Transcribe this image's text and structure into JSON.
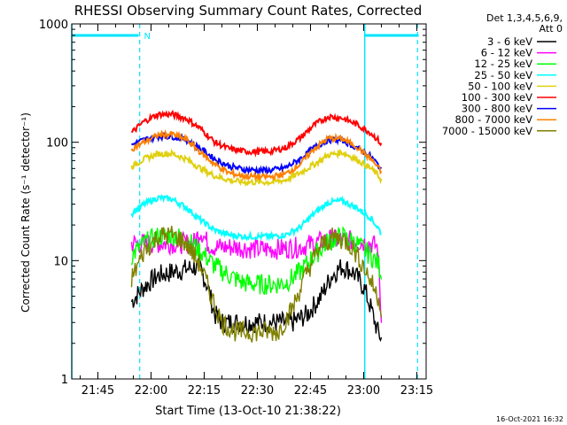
{
  "chart_data": {
    "type": "line",
    "title": "RHESSI Observing Summary Count Rates, Corrected",
    "xlabel": "Start Time (13-Oct-10 21:38:22)",
    "ylabel": "Corrected Count Rate (s⁻¹ detector⁻¹)",
    "yscale": "log",
    "ylim": [
      1,
      1000
    ],
    "xlim_minutes": [
      -2.37,
      97.63
    ],
    "x_unit": "minutes after 21:40",
    "y_ticks": [
      {
        "value": 1,
        "label": "1"
      },
      {
        "value": 10,
        "label": "10"
      },
      {
        "value": 100,
        "label": "100"
      },
      {
        "value": 1000,
        "label": "1000"
      }
    ],
    "x_ticks": [
      {
        "value": 5,
        "label": "21:45"
      },
      {
        "value": 20,
        "label": "22:00"
      },
      {
        "value": 35,
        "label": "22:15"
      },
      {
        "value": 50,
        "label": "22:30"
      },
      {
        "value": 65,
        "label": "22:45"
      },
      {
        "value": 80,
        "label": "23:00"
      },
      {
        "value": 95,
        "label": "23:15"
      }
    ],
    "legend_header": [
      "Det 1,3,4,5,6,9,",
      "Att 0"
    ],
    "legend_position": "right",
    "data_start": 14.5,
    "data_end": 85,
    "series": [
      {
        "name": "3 - 6 keV",
        "color": "#000000",
        "x": [
          14.5,
          18,
          22,
          26,
          30,
          32,
          34,
          36,
          38,
          40,
          44,
          48,
          52,
          56,
          60,
          64,
          68,
          71,
          74,
          77,
          80,
          82,
          84,
          85
        ],
        "values": [
          4.5,
          6,
          7.5,
          8,
          8.5,
          8.8,
          8.5,
          6,
          3.5,
          3,
          3,
          3,
          3,
          3,
          3,
          3.5,
          5,
          7.5,
          9,
          8,
          6,
          4,
          2.5,
          2.2
        ]
      },
      {
        "name": "6 - 12 keV",
        "color": "#ff00ff",
        "x": [
          14.5,
          20,
          26,
          30,
          32,
          34,
          36,
          38,
          44,
          50,
          56,
          62,
          66,
          70,
          74,
          78,
          82,
          84,
          85
        ],
        "values": [
          14,
          14,
          14,
          14,
          14,
          18,
          14,
          13,
          13,
          12.5,
          12.5,
          13,
          14,
          15,
          15,
          14.5,
          14,
          13,
          3
        ]
      },
      {
        "name": "12 - 25 keV",
        "color": "#00ff00",
        "x": [
          14.5,
          18,
          22,
          26,
          30,
          34,
          38,
          42,
          46,
          50,
          54,
          58,
          62,
          66,
          70,
          74,
          78,
          82,
          84,
          85
        ],
        "values": [
          11,
          14,
          16,
          16.5,
          15,
          12,
          9,
          7.5,
          6.5,
          6.3,
          6.3,
          6.5,
          8,
          11,
          14.5,
          16,
          14,
          11,
          9.5,
          8
        ]
      },
      {
        "name": "25 - 50 keV",
        "color": "#00ffff",
        "x": [
          14.5,
          18,
          22,
          26,
          30,
          34,
          38,
          42,
          46,
          50,
          54,
          58,
          62,
          66,
          70,
          74,
          78,
          82,
          84,
          85
        ],
        "values": [
          25,
          30,
          34,
          33,
          28,
          22,
          18,
          16.5,
          16,
          16,
          16,
          16.5,
          19,
          25,
          31,
          32,
          28,
          23,
          19,
          17
        ]
      },
      {
        "name": "50 - 100 keV",
        "color": "#e0d010",
        "x": [
          14.5,
          18,
          22,
          26,
          30,
          34,
          38,
          42,
          46,
          50,
          54,
          58,
          62,
          66,
          70,
          74,
          78,
          82,
          84,
          85
        ],
        "values": [
          62,
          72,
          80,
          80,
          72,
          60,
          52,
          48,
          46,
          46,
          46,
          48,
          55,
          65,
          78,
          82,
          72,
          60,
          53,
          48
        ]
      },
      {
        "name": "100 - 300 keV",
        "color": "#ff0000",
        "x": [
          14.5,
          18,
          22,
          26,
          30,
          34,
          38,
          42,
          46,
          50,
          54,
          58,
          62,
          66,
          70,
          74,
          78,
          82,
          84,
          85
        ],
        "values": [
          120,
          150,
          172,
          172,
          158,
          130,
          100,
          88,
          84,
          83,
          84,
          90,
          108,
          140,
          165,
          160,
          142,
          120,
          105,
          95
        ]
      },
      {
        "name": "300 - 800 keV",
        "color": "#0000ff",
        "x": [
          14.5,
          18,
          22,
          26,
          30,
          34,
          38,
          42,
          46,
          50,
          54,
          58,
          62,
          66,
          70,
          74,
          78,
          82,
          84,
          85
        ],
        "values": [
          95,
          105,
          112,
          112,
          105,
          88,
          72,
          63,
          59,
          58,
          58,
          61,
          72,
          90,
          105,
          104,
          90,
          76,
          65,
          58
        ]
      },
      {
        "name": "800 - 7000 keV",
        "color": "#ff8000",
        "x": [
          14.5,
          18,
          22,
          26,
          30,
          34,
          38,
          42,
          46,
          50,
          54,
          58,
          62,
          66,
          70,
          74,
          78,
          82,
          84,
          85
        ],
        "values": [
          88,
          100,
          115,
          117,
          105,
          82,
          65,
          55,
          52,
          51,
          51,
          54,
          65,
          88,
          108,
          107,
          92,
          72,
          62,
          55
        ]
      },
      {
        "name": "7000 - 15000 keV",
        "color": "#808000",
        "x": [
          14.5,
          18,
          22,
          26,
          30,
          34,
          37,
          40,
          44,
          48,
          52,
          56,
          60,
          64,
          68,
          72,
          76,
          80,
          84,
          85
        ],
        "values": [
          7,
          12,
          16,
          16.5,
          14,
          9,
          5,
          3,
          2.5,
          2.5,
          2.5,
          2.5,
          4,
          8,
          13.5,
          16,
          14,
          9,
          5,
          4
        ]
      }
    ],
    "annotations": {
      "night_bar_1": {
        "x_start": -2.37,
        "x_end": 16.5,
        "y": 800
      },
      "night_bar_2": {
        "x_start": 80.3,
        "x_end": 95.5,
        "y": 800
      },
      "saa_label": {
        "text": "N",
        "x": 18.0,
        "y": 800
      },
      "cyan_dashed_lines": [
        16.8,
        95.2
      ],
      "cyan_solid_lines": [
        -2.37,
        80.3
      ]
    },
    "timestamp": "16-Oct-2021 16:32"
  }
}
